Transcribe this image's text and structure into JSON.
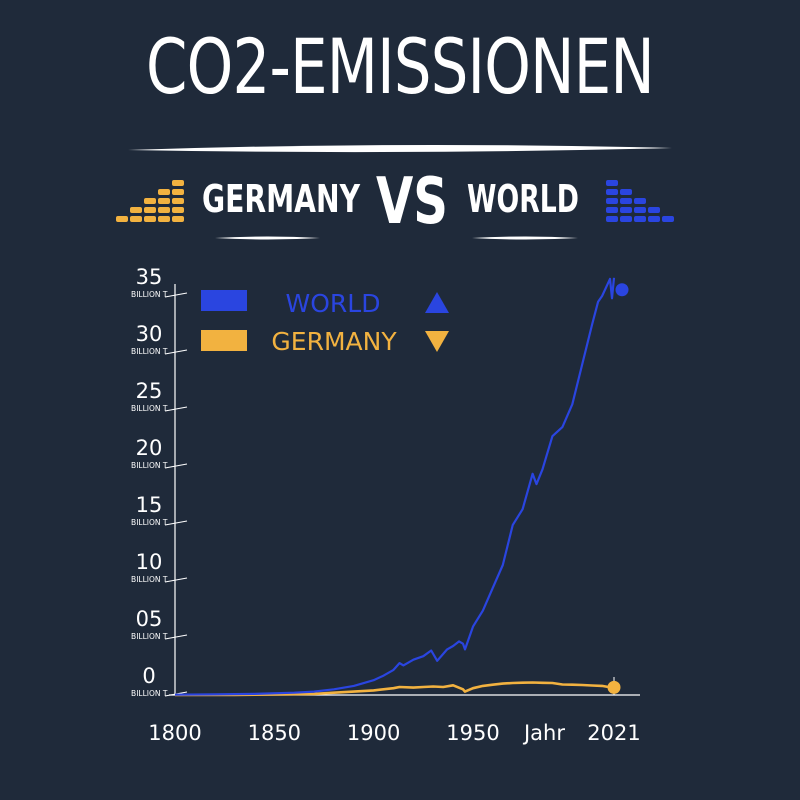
{
  "header": {
    "title": "CO2-EMISSIONEN",
    "left_label": "GERMANY",
    "vs_label": "VS",
    "right_label": "WORLD"
  },
  "colors": {
    "background": "#1f2a3a",
    "world": "#2a45e0",
    "germany": "#f2b240",
    "text": "#ffffff"
  },
  "icons": {
    "left": "stacked-bars-orange-icon",
    "right": "stacked-bars-blue-icon"
  },
  "legend": {
    "world_label": "WORLD",
    "germany_label": "GERMANY"
  },
  "chart_data": {
    "type": "line",
    "x_ticks": [
      "1800",
      "1850",
      "1900",
      "1950",
      "Jahr",
      "2021"
    ],
    "y_ticks": [
      {
        "value": 0,
        "label": "0",
        "unit": "BILLION T."
      },
      {
        "value": 5,
        "label": "05",
        "unit": "BILLION T."
      },
      {
        "value": 10,
        "label": "10",
        "unit": "BILLION T."
      },
      {
        "value": 15,
        "label": "15",
        "unit": "BILLION T."
      },
      {
        "value": 20,
        "label": "20",
        "unit": "BILLION T."
      },
      {
        "value": 25,
        "label": "25",
        "unit": "BILLION T."
      },
      {
        "value": 30,
        "label": "30",
        "unit": "BILLION T."
      },
      {
        "value": 35,
        "label": "35",
        "unit": "BILLION T."
      }
    ],
    "xlim": [
      1800,
      2021
    ],
    "ylim": [
      0,
      35
    ],
    "legend_position": "top-left",
    "series": [
      {
        "name": "WORLD",
        "x": [
          1800,
          1820,
          1840,
          1860,
          1870,
          1880,
          1890,
          1900,
          1905,
          1910,
          1913,
          1915,
          1920,
          1925,
          1929,
          1932,
          1937,
          1940,
          1943,
          1945,
          1946,
          1950,
          1955,
          1960,
          1965,
          1970,
          1975,
          1980,
          1982,
          1985,
          1990,
          1995,
          2000,
          2005,
          2010,
          2013,
          2015,
          2019,
          2020,
          2021
        ],
        "y": [
          0.03,
          0.05,
          0.1,
          0.2,
          0.3,
          0.5,
          0.8,
          1.3,
          1.7,
          2.2,
          2.8,
          2.6,
          3.1,
          3.4,
          3.9,
          3.0,
          4.0,
          4.3,
          4.7,
          4.5,
          4.0,
          6.0,
          7.4,
          9.4,
          11.4,
          14.9,
          16.3,
          19.4,
          18.5,
          19.8,
          22.7,
          23.5,
          25.5,
          29.0,
          32.5,
          34.5,
          35.0,
          36.5,
          34.8,
          36.6
        ]
      },
      {
        "name": "GERMANY",
        "x": [
          1800,
          1830,
          1850,
          1870,
          1880,
          1890,
          1900,
          1910,
          1913,
          1920,
          1925,
          1930,
          1935,
          1940,
          1945,
          1946,
          1950,
          1955,
          1960,
          1965,
          1970,
          1975,
          1980,
          1985,
          1990,
          1995,
          2000,
          2005,
          2010,
          2015,
          2020,
          2021
        ],
        "y": [
          0.0,
          0.01,
          0.05,
          0.1,
          0.2,
          0.3,
          0.4,
          0.6,
          0.7,
          0.65,
          0.7,
          0.75,
          0.7,
          0.85,
          0.5,
          0.3,
          0.6,
          0.8,
          0.9,
          1.0,
          1.05,
          1.08,
          1.1,
          1.07,
          1.05,
          0.92,
          0.9,
          0.88,
          0.83,
          0.8,
          0.65,
          0.67
        ]
      }
    ]
  }
}
